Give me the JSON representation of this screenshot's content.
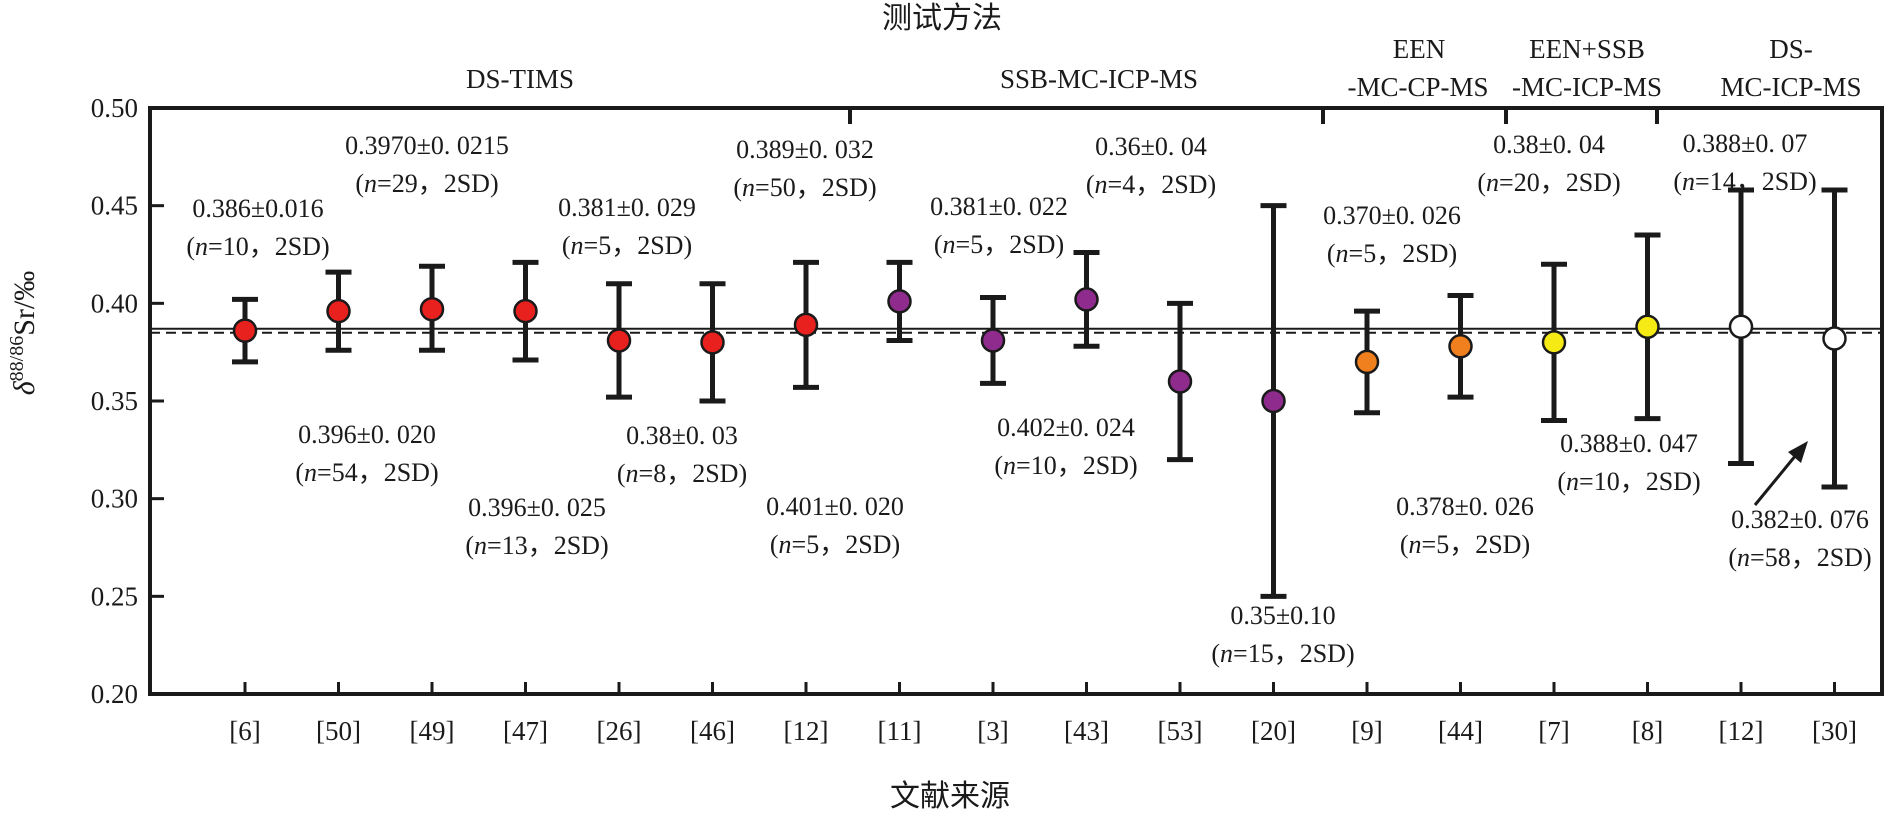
{
  "chart_data": {
    "type": "scatter",
    "title": "测试方法",
    "xlabel": "文献来源",
    "ylabel": "δ88/86Sr/‰",
    "ylim": [
      0.2,
      0.5
    ],
    "yticks": [
      "0.20",
      "0.25",
      "0.30",
      "0.35",
      "0.40",
      "0.45",
      "0.50"
    ],
    "reference_line": 0.387,
    "categories": [
      "[6]",
      "[50]",
      "[49]",
      "[47]",
      "[26]",
      "[46]",
      "[12]",
      "[11]",
      "[3]",
      "[43]",
      "[53]",
      "[20]",
      "[9]",
      "[44]",
      "[7]",
      "[8]",
      "[12]",
      "[30]"
    ],
    "points": [
      {
        "ref": "[6]",
        "value": 0.386,
        "low": 0.37,
        "high": 0.402,
        "color": "#e8211e",
        "line1": "0.386±0.016",
        "n": "n",
        "line2": "=10，2SD)"
      },
      {
        "ref": "[50]",
        "value": 0.396,
        "low": 0.376,
        "high": 0.416,
        "color": "#e8211e",
        "line1": "0.396±0. 020",
        "n": "n",
        "line2": "=54，2SD)"
      },
      {
        "ref": "[49]",
        "value": 0.397,
        "low": 0.376,
        "high": 0.419,
        "color": "#e8211e",
        "line1": "0.3970±0. 0215",
        "n": "n",
        "line2": "=29，2SD)"
      },
      {
        "ref": "[47]",
        "value": 0.396,
        "low": 0.371,
        "high": 0.421,
        "color": "#e8211e",
        "line1": "0.396±0. 025",
        "n": "n",
        "line2": "=13，2SD)"
      },
      {
        "ref": "[26]",
        "value": 0.381,
        "low": 0.352,
        "high": 0.41,
        "color": "#e8211e",
        "line1": "0.381±0. 029",
        "n": "n",
        "line2": "=5，2SD)"
      },
      {
        "ref": "[46]",
        "value": 0.38,
        "low": 0.35,
        "high": 0.41,
        "color": "#e8211e",
        "line1": "0.38±0. 03",
        "n": "n",
        "line2": "=8，2SD)"
      },
      {
        "ref": "[12]",
        "value": 0.389,
        "low": 0.357,
        "high": 0.421,
        "color": "#e8211e",
        "line1": "0.389±0. 032",
        "n": "n",
        "line2": "=50，2SD)"
      },
      {
        "ref": "[11]",
        "value": 0.401,
        "low": 0.381,
        "high": 0.421,
        "color": "#8e2b8c",
        "line1": "0.401±0. 020",
        "n": "n",
        "line2": "=5，2SD)"
      },
      {
        "ref": "[3]",
        "value": 0.381,
        "low": 0.359,
        "high": 0.403,
        "color": "#8e2b8c",
        "line1": "0.381±0. 022",
        "n": "n",
        "line2": "=5，2SD)"
      },
      {
        "ref": "[43]",
        "value": 0.402,
        "low": 0.378,
        "high": 0.426,
        "color": "#8e2b8c",
        "line1": "0.402±0. 024",
        "n": "n",
        "line2": "=10，2SD)"
      },
      {
        "ref": "[53]",
        "value": 0.36,
        "low": 0.32,
        "high": 0.4,
        "color": "#8e2b8c",
        "line1": "0.36±0. 04",
        "n": "n",
        "line2": "=4，2SD)"
      },
      {
        "ref": "[20]",
        "value": 0.35,
        "low": 0.25,
        "high": 0.45,
        "color": "#8e2b8c",
        "line1": "0.35±0.10",
        "n": "n",
        "line2": "=15，2SD)"
      },
      {
        "ref": "[9]",
        "value": 0.37,
        "low": 0.344,
        "high": 0.396,
        "color": "#f07f1e",
        "line1": "0.370±0. 026",
        "n": "n",
        "line2": "=5，2SD)"
      },
      {
        "ref": "[44]",
        "value": 0.378,
        "low": 0.352,
        "high": 0.404,
        "color": "#f07f1e",
        "line1": "0.378±0. 026",
        "n": "n",
        "line2": "=5，2SD)"
      },
      {
        "ref": "[7]",
        "value": 0.38,
        "low": 0.34,
        "high": 0.42,
        "color": "#f5ea14",
        "line1": "0.38±0. 04",
        "n": "n",
        "line2": "=20，2SD)"
      },
      {
        "ref": "[8]",
        "value": 0.388,
        "low": 0.341,
        "high": 0.435,
        "color": "#f5ea14",
        "line1": "0.388±0. 047",
        "n": "n",
        "line2": "=10，2SD)"
      },
      {
        "ref": "[12]",
        "value": 0.388,
        "low": 0.318,
        "high": 0.458,
        "color": "#ffffff",
        "line1": "0.388±0. 07",
        "n": "n",
        "line2": "=14，2SD)"
      },
      {
        "ref": "[30]",
        "value": 0.382,
        "low": 0.306,
        "high": 0.458,
        "color": "#ffffff",
        "line1": "0.382±0. 076",
        "n": "n",
        "line2": "=58，2SD)"
      }
    ],
    "methods": [
      {
        "label": "DS-TIMS"
      },
      {
        "label": "SSB-MC-ICP-MS"
      },
      {
        "label": "EEN",
        "label2": "-MC-CP-MS"
      },
      {
        "label": "EEN+SSB",
        "label2": "-MC-ICP-MS"
      },
      {
        "label": "DS-",
        "label2": "MC-ICP-MS"
      }
    ],
    "grid": false,
    "legend": "none"
  }
}
